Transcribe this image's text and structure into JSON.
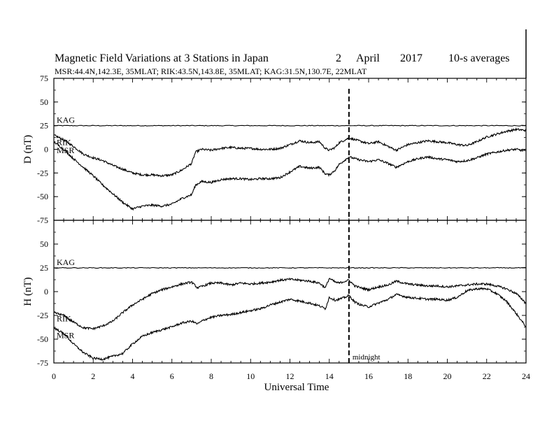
{
  "title": {
    "main": "Magnetic Field Variations at 3 Stations in Japan",
    "day": "2",
    "month": "April",
    "year": "2017",
    "note": "10-s averages"
  },
  "subtitle": "MSR:44.4N,142.3E, 35MLAT;  RIK:43.5N,143.8E, 35MLAT;  KAG:31.5N,130.7E, 22MLAT",
  "xlabel": "Universal Time",
  "annotation": {
    "label": "midnight",
    "x": 15
  },
  "chart_data": [
    {
      "type": "line",
      "panel": "D",
      "ylabel": "D (nT)",
      "xlim": [
        0,
        24
      ],
      "ylim": [
        -75,
        75
      ],
      "x_ticks": [
        0,
        2,
        4,
        6,
        8,
        10,
        12,
        14,
        16,
        18,
        20,
        22,
        24
      ],
      "y_ticks": [
        75,
        50,
        25,
        0,
        -25,
        -50,
        -75
      ],
      "series": [
        {
          "name": "KAG",
          "points": [
            [
              0,
              25
            ],
            [
              24,
              25
            ]
          ]
        },
        {
          "name": "RIK",
          "points": [
            [
              0,
              15
            ],
            [
              0.5,
              10
            ],
            [
              1,
              3
            ],
            [
              1.5,
              -5
            ],
            [
              2,
              -9
            ],
            [
              2.5,
              -12
            ],
            [
              3,
              -17
            ],
            [
              3.5,
              -21
            ],
            [
              4,
              -25
            ],
            [
              4.5,
              -27
            ],
            [
              5,
              -27
            ],
            [
              5.5,
              -28
            ],
            [
              6,
              -27
            ],
            [
              6.5,
              -22
            ],
            [
              7,
              -15
            ],
            [
              7.2,
              -3
            ],
            [
              7.5,
              0
            ],
            [
              8,
              -1
            ],
            [
              8.5,
              1
            ],
            [
              9,
              2
            ],
            [
              9.5,
              1
            ],
            [
              10,
              1
            ],
            [
              10.5,
              0
            ],
            [
              11,
              0
            ],
            [
              11.5,
              1
            ],
            [
              12,
              5
            ],
            [
              12.5,
              9
            ],
            [
              13,
              7
            ],
            [
              13.5,
              8
            ],
            [
              13.8,
              1
            ],
            [
              14,
              -1
            ],
            [
              14.3,
              2
            ],
            [
              14.5,
              7
            ],
            [
              15,
              12
            ],
            [
              15.5,
              9
            ],
            [
              16,
              6
            ],
            [
              16.5,
              8
            ],
            [
              17,
              3
            ],
            [
              17.4,
              -1
            ],
            [
              18,
              5
            ],
            [
              18.5,
              7
            ],
            [
              19,
              9
            ],
            [
              19.5,
              8
            ],
            [
              20,
              7
            ],
            [
              20.5,
              5
            ],
            [
              21,
              4
            ],
            [
              21.5,
              8
            ],
            [
              22,
              13
            ],
            [
              22.5,
              16
            ],
            [
              23,
              19
            ],
            [
              23.5,
              21
            ],
            [
              24,
              20
            ]
          ]
        },
        {
          "name": "MSR",
          "points": [
            [
              0,
              8
            ],
            [
              0.5,
              0
            ],
            [
              1,
              -10
            ],
            [
              1.5,
              -19
            ],
            [
              2,
              -28
            ],
            [
              2.5,
              -38
            ],
            [
              3,
              -47
            ],
            [
              3.5,
              -56
            ],
            [
              4,
              -63
            ],
            [
              4.5,
              -60
            ],
            [
              5,
              -59
            ],
            [
              5.5,
              -60
            ],
            [
              6,
              -58
            ],
            [
              6.5,
              -52
            ],
            [
              7,
              -48
            ],
            [
              7.2,
              -38
            ],
            [
              7.5,
              -34
            ],
            [
              8,
              -35
            ],
            [
              8.5,
              -32
            ],
            [
              9,
              -31
            ],
            [
              9.5,
              -31
            ],
            [
              10,
              -32
            ],
            [
              10.5,
              -31
            ],
            [
              11,
              -31
            ],
            [
              11.5,
              -30
            ],
            [
              12,
              -24
            ],
            [
              12.5,
              -18
            ],
            [
              13,
              -20
            ],
            [
              13.5,
              -19
            ],
            [
              13.8,
              -26
            ],
            [
              14,
              -27
            ],
            [
              14.3,
              -22
            ],
            [
              14.5,
              -16
            ],
            [
              15,
              -8
            ],
            [
              15.5,
              -11
            ],
            [
              16,
              -13
            ],
            [
              16.5,
              -11
            ],
            [
              17,
              -15
            ],
            [
              17.4,
              -19
            ],
            [
              18,
              -13
            ],
            [
              18.5,
              -10
            ],
            [
              19,
              -8
            ],
            [
              19.5,
              -10
            ],
            [
              20,
              -11
            ],
            [
              20.5,
              -13
            ],
            [
              21,
              -12
            ],
            [
              21.5,
              -9
            ],
            [
              22,
              -5
            ],
            [
              22.5,
              -3
            ],
            [
              23,
              -1
            ],
            [
              23.5,
              0
            ],
            [
              24,
              -2
            ]
          ]
        }
      ]
    },
    {
      "type": "line",
      "panel": "H",
      "ylabel": "H (nT)",
      "xlim": [
        0,
        24
      ],
      "ylim": [
        -75,
        75
      ],
      "x_ticks": [
        0,
        2,
        4,
        6,
        8,
        10,
        12,
        14,
        16,
        18,
        20,
        22,
        24
      ],
      "y_ticks": [
        75,
        50,
        25,
        0,
        -25,
        -50,
        -75
      ],
      "series": [
        {
          "name": "KAG",
          "points": [
            [
              0,
              25
            ],
            [
              24,
              25
            ]
          ]
        },
        {
          "name": "RIK",
          "points": [
            [
              0,
              -22
            ],
            [
              0.5,
              -25
            ],
            [
              1,
              -32
            ],
            [
              1.5,
              -38
            ],
            [
              2,
              -39
            ],
            [
              2.5,
              -36
            ],
            [
              3,
              -31
            ],
            [
              3.5,
              -22
            ],
            [
              4,
              -14
            ],
            [
              4.5,
              -8
            ],
            [
              5,
              -2
            ],
            [
              5.5,
              2
            ],
            [
              6,
              5
            ],
            [
              6.5,
              8
            ],
            [
              7,
              10
            ],
            [
              7.3,
              4
            ],
            [
              7.6,
              6
            ],
            [
              8,
              9
            ],
            [
              8.5,
              9
            ],
            [
              9,
              7
            ],
            [
              9.5,
              9
            ],
            [
              10,
              8
            ],
            [
              10.5,
              9
            ],
            [
              11,
              10
            ],
            [
              11.5,
              12
            ],
            [
              12,
              13
            ],
            [
              12.5,
              12
            ],
            [
              13,
              11
            ],
            [
              13.5,
              9
            ],
            [
              13.8,
              4
            ],
            [
              14,
              14
            ],
            [
              14.3,
              10
            ],
            [
              14.5,
              9
            ],
            [
              14.8,
              11
            ],
            [
              15,
              12
            ],
            [
              15.3,
              6
            ],
            [
              15.6,
              4
            ],
            [
              16,
              2
            ],
            [
              16.5,
              5
            ],
            [
              17,
              7
            ],
            [
              17.4,
              11
            ],
            [
              18,
              8
            ],
            [
              18.5,
              7
            ],
            [
              19,
              6
            ],
            [
              19.5,
              6
            ],
            [
              20,
              5
            ],
            [
              20.5,
              6
            ],
            [
              21,
              7
            ],
            [
              21.5,
              8
            ],
            [
              22,
              8
            ],
            [
              22.5,
              6
            ],
            [
              23,
              3
            ],
            [
              23.5,
              -2
            ],
            [
              24,
              -12
            ]
          ]
        },
        {
          "name": "MSR",
          "points": [
            [
              0,
              -38
            ],
            [
              0.5,
              -44
            ],
            [
              1,
              -55
            ],
            [
              1.5,
              -64
            ],
            [
              2,
              -70
            ],
            [
              2.5,
              -71
            ],
            [
              3,
              -68
            ],
            [
              3.5,
              -65
            ],
            [
              4,
              -55
            ],
            [
              4.5,
              -47
            ],
            [
              5,
              -43
            ],
            [
              5.5,
              -40
            ],
            [
              6,
              -37
            ],
            [
              6.5,
              -33
            ],
            [
              7,
              -31
            ],
            [
              7.3,
              -34
            ],
            [
              7.6,
              -30
            ],
            [
              8,
              -27
            ],
            [
              8.5,
              -25
            ],
            [
              9,
              -24
            ],
            [
              9.5,
              -22
            ],
            [
              10,
              -20
            ],
            [
              10.5,
              -18
            ],
            [
              11,
              -14
            ],
            [
              11.5,
              -11
            ],
            [
              12,
              -8
            ],
            [
              12.5,
              -10
            ],
            [
              13,
              -12
            ],
            [
              13.5,
              -15
            ],
            [
              13.8,
              -18
            ],
            [
              14,
              -6
            ],
            [
              14.3,
              -9
            ],
            [
              14.5,
              -8
            ],
            [
              14.8,
              -6
            ],
            [
              15,
              -4
            ],
            [
              15.3,
              -11
            ],
            [
              15.6,
              -14
            ],
            [
              16,
              -16
            ],
            [
              16.5,
              -12
            ],
            [
              17,
              -8
            ],
            [
              17.4,
              -3
            ],
            [
              18,
              -6
            ],
            [
              18.5,
              -7
            ],
            [
              19,
              -8
            ],
            [
              19.5,
              -8
            ],
            [
              20,
              -9
            ],
            [
              20.5,
              -6
            ],
            [
              21,
              1
            ],
            [
              21.5,
              3
            ],
            [
              22,
              3
            ],
            [
              22.5,
              -2
            ],
            [
              23,
              -10
            ],
            [
              23.5,
              -23
            ],
            [
              24,
              -37
            ]
          ]
        }
      ]
    }
  ]
}
